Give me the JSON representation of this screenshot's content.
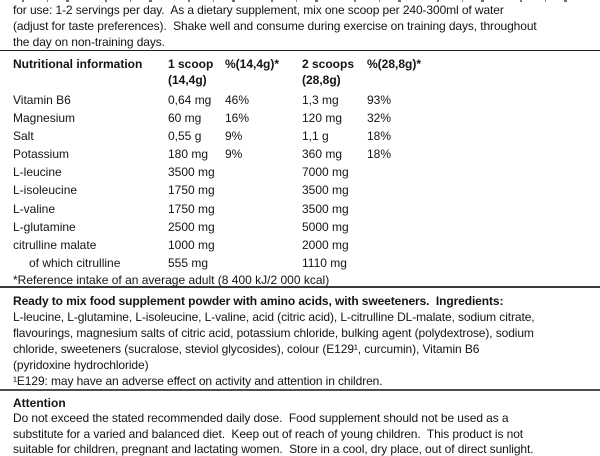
{
  "usage": {
    "lines": [
      "for use: 1-2 servings per day.  As a dietary supplement, mix one scoop per 240-300ml of water",
      "(adjust for taste preferences).  Shake well and consume during exercise on training days, throughout",
      "the day on non-training days."
    ]
  },
  "table": {
    "header": {
      "col1": "Nutritional information",
      "col2_line1": "1 scoop",
      "col2_line2": "(14,4g)",
      "col3": "%(14,4g)*",
      "col4_line1": "2 scoops",
      "col4_line2": "(28,8g)",
      "col5": "%(28,8g)*"
    },
    "rows": [
      {
        "name": "Vitamin B6",
        "amount1": "0,64 mg",
        "pct1": "46%",
        "amount2": "1,3 mg",
        "pct2": "93%"
      },
      {
        "name": "Magnesium",
        "amount1": "60 mg",
        "pct1": "16%",
        "amount2": "120 mg",
        "pct2": "32%"
      },
      {
        "name": "Salt",
        "amount1": "0,55 g",
        "pct1": "9%",
        "amount2": "1,1 g",
        "pct2": "18%"
      },
      {
        "name": "Potassium",
        "amount1": "180 mg",
        "pct1": "9%",
        "amount2": "360 mg",
        "pct2": "18%"
      },
      {
        "name": "L-leucine",
        "amount1": "3500 mg",
        "pct1": "",
        "amount2": "7000 mg",
        "pct2": ""
      },
      {
        "name": "L-isoleucine",
        "amount1": "1750 mg",
        "pct1": "",
        "amount2": "3500 mg",
        "pct2": ""
      },
      {
        "name": "L-valine",
        "amount1": "1750 mg",
        "pct1": "",
        "amount2": "3500 mg",
        "pct2": ""
      },
      {
        "name": "L-glutamine",
        "amount1": "2500 mg",
        "pct1": "",
        "amount2": "5000 mg",
        "pct2": ""
      },
      {
        "name": "citrulline malate",
        "amount1": "1000 mg",
        "pct1": "",
        "amount2": "2000 mg",
        "pct2": ""
      },
      {
        "name": "of which citrulline",
        "amount1": "555 mg",
        "pct1": "",
        "amount2": "1110 mg",
        "pct2": ""
      }
    ],
    "reference_note": "*Reference intake of an average adult (8 400 kJ/2 000 kcal)"
  },
  "ingredients": {
    "lead_line": "Ready to mix food supplement powder with amino acids, with sweeteners.  Ingredients:",
    "lines": [
      "L-leucine, L-glutamine, L-isoleucine, L-valine, acid (citric acid), L-citrulline DL-malate, sodium citrate,",
      "flavourings, magnesium salts of citric acid, potassium chloride, bulking agent (polydextrose), sodium",
      "chloride, sweeteners (sucralose, steviol glycosides), colour (E129¹, curcumin), Vitamin B6",
      "(pyridoxine hydrochloride)"
    ],
    "e129_footnote": "¹E129: may have an adverse effect on activity and attention in children."
  },
  "attention": {
    "heading": "Attention",
    "lines": [
      "Do not exceed the stated recommended daily dose.  Food supplement should not be used as a",
      "substitute for a varied and balanced diet.  Keep out of reach of young children.  This product is not",
      "suitable for children, pregnant and lactating women.  Store in a cool, dry place, out of direct sunlight."
    ]
  }
}
